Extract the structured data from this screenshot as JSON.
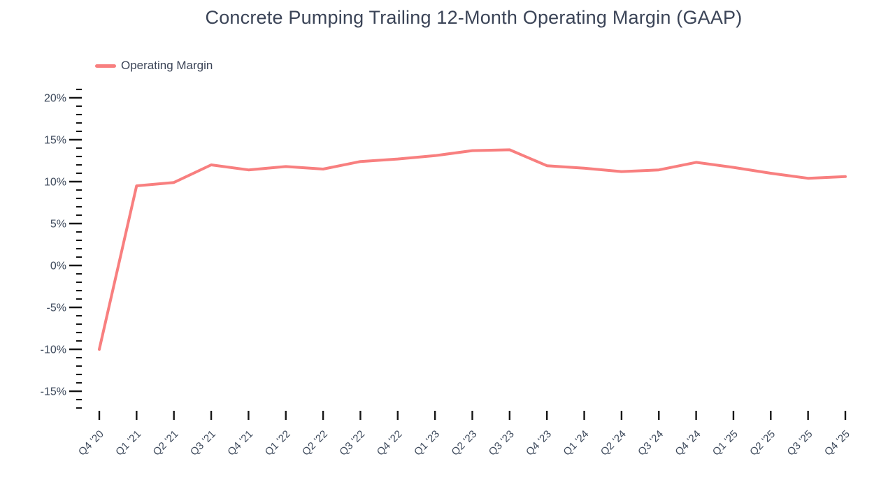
{
  "legend": {
    "label": "Operating Margin"
  },
  "colors": {
    "series_line": "#f87f7f",
    "title_text": "#3b4457",
    "tick_label_text": "#3e4a5c",
    "tick_mark": "#161616",
    "background": "#ffffff"
  },
  "chart_data": {
    "type": "line",
    "title": "Concrete Pumping Trailing 12-Month Operating Margin (GAAP)",
    "xlabel": "",
    "ylabel": "",
    "categories": [
      "Q4 '20",
      "Q1 '21",
      "Q2 '21",
      "Q3 '21",
      "Q4 '21",
      "Q1 '22",
      "Q2 '22",
      "Q3 '22",
      "Q4 '22",
      "Q1 '23",
      "Q2 '23",
      "Q3 '23",
      "Q4 '23",
      "Q1 '24",
      "Q2 '24",
      "Q3 '24",
      "Q4 '24",
      "Q1 '25",
      "Q2 '25",
      "Q3 '25",
      "Q4 '25"
    ],
    "series": [
      {
        "name": "Operating Margin",
        "color": "#f87f7f",
        "values": [
          -10.0,
          9.5,
          9.9,
          12.0,
          11.4,
          11.8,
          11.5,
          12.4,
          12.7,
          13.1,
          13.7,
          13.8,
          11.9,
          11.6,
          11.2,
          11.4,
          12.3,
          11.7,
          11.0,
          10.4,
          10.6
        ]
      }
    ],
    "y_axis": {
      "unit": "%",
      "range": [
        -17,
        21
      ],
      "major_ticks": [
        20,
        15,
        10,
        5,
        0,
        -5,
        -10,
        -15
      ],
      "minor_tick_step": 1,
      "tick_label_format": "{v}%"
    },
    "legend_position": "top-left",
    "grid": false
  }
}
